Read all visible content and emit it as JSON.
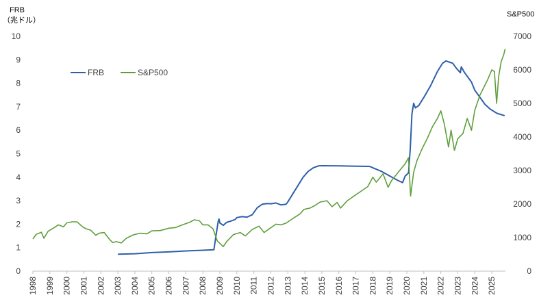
{
  "chart_data": {
    "type": "line",
    "title": "",
    "y_left_label_lines": [
      "FRB",
      "（兆ドル）"
    ],
    "y_right_label": "S&P500",
    "x_ticks": [
      "1998",
      "1999",
      "2000",
      "2001",
      "2002",
      "2003",
      "2004",
      "2005",
      "2006",
      "2007",
      "2008",
      "2009",
      "2010",
      "2011",
      "2012",
      "2013",
      "2014",
      "2015",
      "2016",
      "2017",
      "2018",
      "2019",
      "2020",
      "2021",
      "2022",
      "2023",
      "2024",
      "2025"
    ],
    "xlim": [
      1998.0,
      2025.8
    ],
    "y_left_ticks": [
      "0",
      "1",
      "2",
      "3",
      "4",
      "5",
      "6",
      "7",
      "8",
      "9",
      "10"
    ],
    "ylim_left": [
      0,
      10
    ],
    "y_right_ticks": [
      "0",
      "1000",
      "2000",
      "3000",
      "4000",
      "5000",
      "6000",
      "7000"
    ],
    "ylim_right": [
      0,
      7000
    ],
    "legend_position": "upper-left",
    "grid": false,
    "series": [
      {
        "name": "FRB",
        "axis": "left",
        "color": "#2e5fa8",
        "points": [
          [
            2003.0,
            0.72
          ],
          [
            2004.0,
            0.74
          ],
          [
            2005.0,
            0.79
          ],
          [
            2006.0,
            0.82
          ],
          [
            2007.0,
            0.86
          ],
          [
            2008.0,
            0.89
          ],
          [
            2008.65,
            0.91
          ],
          [
            2008.75,
            1.4
          ],
          [
            2008.9,
            2.1
          ],
          [
            2008.95,
            2.22
          ],
          [
            2009.0,
            2.05
          ],
          [
            2009.2,
            1.95
          ],
          [
            2009.4,
            2.08
          ],
          [
            2009.6,
            2.12
          ],
          [
            2009.9,
            2.2
          ],
          [
            2010.0,
            2.28
          ],
          [
            2010.3,
            2.32
          ],
          [
            2010.6,
            2.3
          ],
          [
            2010.9,
            2.4
          ],
          [
            2011.2,
            2.7
          ],
          [
            2011.5,
            2.85
          ],
          [
            2011.8,
            2.88
          ],
          [
            2012.0,
            2.87
          ],
          [
            2012.3,
            2.9
          ],
          [
            2012.6,
            2.82
          ],
          [
            2012.9,
            2.85
          ],
          [
            2013.0,
            2.95
          ],
          [
            2013.3,
            3.3
          ],
          [
            2013.6,
            3.65
          ],
          [
            2013.9,
            4.0
          ],
          [
            2014.2,
            4.25
          ],
          [
            2014.5,
            4.4
          ],
          [
            2014.8,
            4.48
          ],
          [
            2015.0,
            4.49
          ],
          [
            2016.0,
            4.48
          ],
          [
            2017.0,
            4.47
          ],
          [
            2017.8,
            4.46
          ],
          [
            2018.0,
            4.4
          ],
          [
            2018.5,
            4.25
          ],
          [
            2019.0,
            4.05
          ],
          [
            2019.5,
            3.85
          ],
          [
            2019.75,
            3.77
          ],
          [
            2019.9,
            4.05
          ],
          [
            2020.1,
            4.18
          ],
          [
            2020.2,
            5.2
          ],
          [
            2020.3,
            6.7
          ],
          [
            2020.4,
            7.15
          ],
          [
            2020.5,
            6.95
          ],
          [
            2020.7,
            7.05
          ],
          [
            2021.0,
            7.4
          ],
          [
            2021.4,
            7.9
          ],
          [
            2021.8,
            8.5
          ],
          [
            2022.1,
            8.85
          ],
          [
            2022.3,
            8.95
          ],
          [
            2022.7,
            8.85
          ],
          [
            2022.9,
            8.65
          ],
          [
            2023.15,
            8.45
          ],
          [
            2023.2,
            8.7
          ],
          [
            2023.4,
            8.45
          ],
          [
            2023.8,
            8.05
          ],
          [
            2024.0,
            7.7
          ],
          [
            2024.3,
            7.4
          ],
          [
            2024.6,
            7.1
          ],
          [
            2024.9,
            6.9
          ],
          [
            2025.3,
            6.72
          ],
          [
            2025.75,
            6.62
          ]
        ]
      },
      {
        "name": "S&P500",
        "axis": "right",
        "color": "#5e9e3a",
        "points": [
          [
            1998.0,
            960
          ],
          [
            1998.2,
            1100
          ],
          [
            1998.5,
            1160
          ],
          [
            1998.65,
            980
          ],
          [
            1998.9,
            1190
          ],
          [
            1999.2,
            1280
          ],
          [
            1999.5,
            1380
          ],
          [
            1999.8,
            1320
          ],
          [
            2000.0,
            1440
          ],
          [
            2000.3,
            1470
          ],
          [
            2000.6,
            1470
          ],
          [
            2000.9,
            1330
          ],
          [
            2001.1,
            1270
          ],
          [
            2001.4,
            1220
          ],
          [
            2001.7,
            1070
          ],
          [
            2001.9,
            1130
          ],
          [
            2002.2,
            1150
          ],
          [
            2002.5,
            950
          ],
          [
            2002.7,
            850
          ],
          [
            2002.9,
            880
          ],
          [
            2003.2,
            840
          ],
          [
            2003.5,
            980
          ],
          [
            2003.9,
            1080
          ],
          [
            2004.3,
            1130
          ],
          [
            2004.7,
            1110
          ],
          [
            2005.0,
            1200
          ],
          [
            2005.5,
            1210
          ],
          [
            2006.0,
            1280
          ],
          [
            2006.4,
            1300
          ],
          [
            2006.8,
            1380
          ],
          [
            2007.2,
            1450
          ],
          [
            2007.5,
            1530
          ],
          [
            2007.8,
            1500
          ],
          [
            2008.0,
            1380
          ],
          [
            2008.3,
            1380
          ],
          [
            2008.6,
            1260
          ],
          [
            2008.85,
            900
          ],
          [
            2009.2,
            730
          ],
          [
            2009.4,
            880
          ],
          [
            2009.8,
            1090
          ],
          [
            2010.2,
            1150
          ],
          [
            2010.5,
            1050
          ],
          [
            2010.9,
            1240
          ],
          [
            2011.3,
            1340
          ],
          [
            2011.6,
            1150
          ],
          [
            2011.9,
            1260
          ],
          [
            2012.3,
            1400
          ],
          [
            2012.6,
            1380
          ],
          [
            2012.9,
            1430
          ],
          [
            2013.3,
            1570
          ],
          [
            2013.7,
            1700
          ],
          [
            2013.95,
            1840
          ],
          [
            2014.3,
            1880
          ],
          [
            2014.6,
            1960
          ],
          [
            2014.9,
            2060
          ],
          [
            2015.3,
            2100
          ],
          [
            2015.6,
            1920
          ],
          [
            2015.9,
            2050
          ],
          [
            2016.1,
            1880
          ],
          [
            2016.5,
            2100
          ],
          [
            2016.9,
            2240
          ],
          [
            2017.3,
            2380
          ],
          [
            2017.7,
            2520
          ],
          [
            2018.0,
            2800
          ],
          [
            2018.2,
            2650
          ],
          [
            2018.6,
            2900
          ],
          [
            2018.9,
            2500
          ],
          [
            2019.1,
            2700
          ],
          [
            2019.5,
            2950
          ],
          [
            2019.9,
            3200
          ],
          [
            2020.1,
            3380
          ],
          [
            2020.22,
            2240
          ],
          [
            2020.4,
            2950
          ],
          [
            2020.6,
            3300
          ],
          [
            2020.9,
            3650
          ],
          [
            2021.2,
            3950
          ],
          [
            2021.5,
            4300
          ],
          [
            2021.8,
            4550
          ],
          [
            2022.0,
            4780
          ],
          [
            2022.2,
            4400
          ],
          [
            2022.45,
            3700
          ],
          [
            2022.6,
            4200
          ],
          [
            2022.8,
            3600
          ],
          [
            2023.0,
            3950
          ],
          [
            2023.3,
            4100
          ],
          [
            2023.55,
            4550
          ],
          [
            2023.8,
            4200
          ],
          [
            2024.0,
            4800
          ],
          [
            2024.3,
            5250
          ],
          [
            2024.55,
            5500
          ],
          [
            2024.75,
            5700
          ],
          [
            2025.0,
            6000
          ],
          [
            2025.15,
            5950
          ],
          [
            2025.28,
            5000
          ],
          [
            2025.4,
            5800
          ],
          [
            2025.55,
            6250
          ],
          [
            2025.7,
            6450
          ],
          [
            2025.78,
            6620
          ]
        ]
      }
    ]
  }
}
